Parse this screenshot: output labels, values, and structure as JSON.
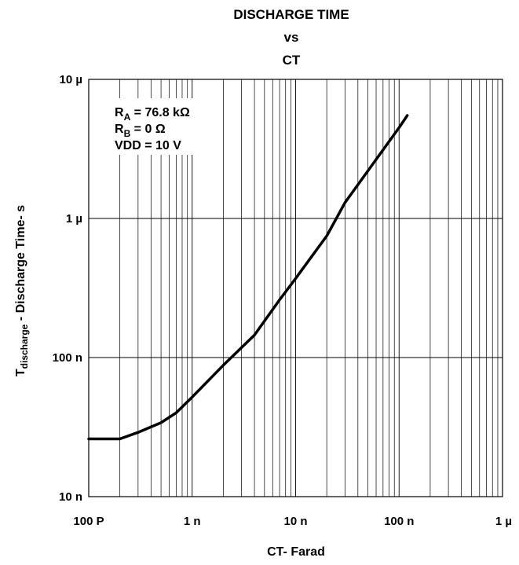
{
  "chart_data": {
    "type": "line",
    "title_lines": [
      "DISCHARGE TIME",
      "vs",
      "CT"
    ],
    "xlabel": "CT- Farad",
    "ylabel": {
      "main": "T",
      "subscript": "discharge",
      "rest": " - Discharge Time- s"
    },
    "x_scale": "log",
    "y_scale": "log",
    "xlim": [
      1e-10,
      1e-06
    ],
    "ylim": [
      1e-08,
      1e-05
    ],
    "grid": true,
    "x_ticks": [
      {
        "value": 1e-10,
        "label": "100 P"
      },
      {
        "value": 1e-09,
        "label": "1 n"
      },
      {
        "value": 1e-08,
        "label": "10 n"
      },
      {
        "value": 1e-07,
        "label": "100 n"
      },
      {
        "value": 1e-06,
        "label": "1 µ"
      }
    ],
    "y_ticks": [
      {
        "value": 1e-08,
        "label": "10 n"
      },
      {
        "value": 1e-07,
        "label": "100 n"
      },
      {
        "value": 1e-06,
        "label": "1 µ"
      },
      {
        "value": 1e-05,
        "label": "10 µ"
      }
    ],
    "annotation": [
      {
        "main": "R",
        "sub": "A",
        "rest": " = 76.8 kΩ"
      },
      {
        "main": "R",
        "sub": "B",
        "rest": " = 0 Ω"
      },
      {
        "main": "VDD = 10 V",
        "sub": "",
        "rest": ""
      }
    ],
    "series": [
      {
        "x": [
          1e-10,
          2e-10,
          3e-10,
          5e-10,
          7e-10,
          1e-09,
          2e-09,
          4e-09,
          7e-09,
          1e-08,
          2e-08,
          3e-08,
          5e-08,
          1e-07,
          1.2e-07
        ],
        "y": [
          2.6e-08,
          2.6e-08,
          2.9e-08,
          3.4e-08,
          4e-08,
          5.2e-08,
          8.8e-08,
          1.45e-07,
          2.6e-07,
          3.7e-07,
          7.5e-07,
          1.3e-06,
          2.2e-06,
          4.5e-06,
          5.5e-06
        ]
      }
    ],
    "line_color": "#000000"
  }
}
